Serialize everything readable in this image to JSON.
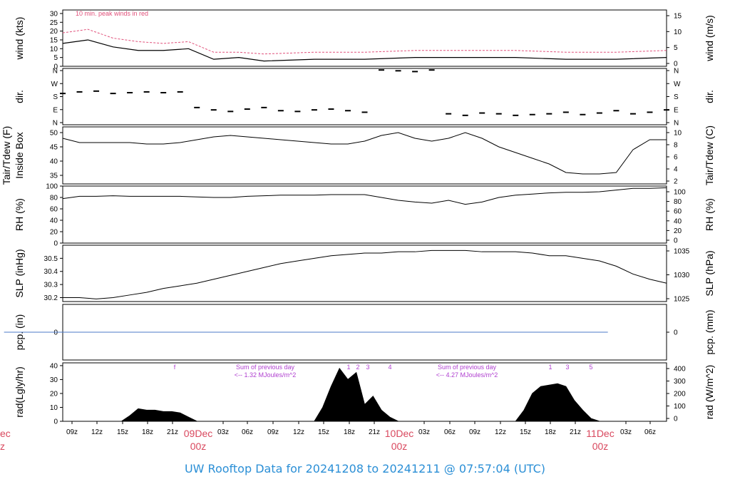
{
  "footer": {
    "prefix": "UW Rooftop Data for",
    "start": "20241208",
    "to": "to",
    "end": "20241211",
    "at": "@ 07:57:04",
    "tz": "(UTC)"
  },
  "colors": {
    "series": "#000000",
    "gust": "#e0507a",
    "precip_line": "#4b78c8",
    "annotation": "#b040d0",
    "date_label": "#d9485e",
    "footer": "#2b8fd6",
    "frame": "#000000"
  },
  "chart_data": [
    {
      "type": "line",
      "id": "wind",
      "ylabel": "wind (kts)",
      "ylabel_right": "wind (m/s)",
      "ylim": [
        0,
        32
      ],
      "yticks": [
        "0",
        "5",
        "10",
        "15",
        "20",
        "25",
        "30"
      ],
      "yticks_right": [
        "0",
        "5",
        "10",
        "15"
      ],
      "annotation": "10 min. peak winds in red",
      "x": [
        0,
        3,
        6,
        9,
        12,
        15,
        18,
        21,
        24,
        30,
        36,
        42,
        48,
        54,
        60,
        66,
        72
      ],
      "series": [
        {
          "values": [
            13,
            15,
            11,
            9,
            9,
            10,
            4,
            5,
            3,
            4,
            4,
            5,
            5,
            5,
            4,
            4,
            5
          ]
        },
        {
          "values": [
            19,
            21,
            16,
            14,
            13,
            14,
            8,
            8,
            7,
            8,
            8,
            9,
            9,
            9,
            8,
            8,
            9
          ]
        }
      ]
    },
    {
      "type": "scatter",
      "id": "dir",
      "ylabel": "dir.",
      "ylabel_right": "dir.",
      "yticks": [
        "N",
        "E",
        "S",
        "W",
        "N"
      ],
      "ylim": [
        0,
        360
      ],
      "x": [
        0,
        2,
        4,
        6,
        8,
        10,
        12,
        14,
        16,
        18,
        20,
        22,
        24,
        26,
        28,
        30,
        32,
        34,
        36,
        38,
        40,
        42,
        44,
        46,
        48,
        50,
        52,
        54,
        56,
        58,
        60,
        62,
        64,
        66,
        68,
        70,
        72
      ],
      "values": [
        200,
        210,
        215,
        200,
        205,
        210,
        205,
        210,
        110,
        95,
        85,
        100,
        110,
        90,
        85,
        95,
        100,
        90,
        80,
        350,
        345,
        340,
        350,
        70,
        60,
        75,
        70,
        60,
        65,
        70,
        80,
        65,
        75,
        90,
        70,
        80,
        95
      ]
    },
    {
      "type": "line",
      "id": "temp",
      "ylabel": "Tair/Tdew (F)",
      "ylabel2": "Inside Box",
      "ylabel_right": "Tair/Tdew (C)",
      "ylim": [
        32,
        52
      ],
      "yticks": [
        "35",
        "40",
        "45",
        "50"
      ],
      "yticks_right": [
        "2",
        "4",
        "6",
        "8",
        "10"
      ],
      "x": [
        0,
        2,
        4,
        6,
        8,
        10,
        12,
        14,
        16,
        18,
        20,
        22,
        24,
        26,
        28,
        30,
        32,
        34,
        36,
        38,
        40,
        42,
        44,
        46,
        48,
        50,
        52,
        54,
        56,
        58,
        60,
        62,
        64,
        66,
        68,
        70,
        72
      ],
      "values": [
        48,
        46.5,
        46.5,
        46.5,
        46.5,
        46,
        46,
        46.5,
        47.5,
        48.5,
        49,
        48.5,
        48,
        47.5,
        47,
        46.5,
        46,
        46,
        47,
        49,
        50,
        48,
        47,
        48,
        50,
        48,
        45,
        43,
        41,
        39,
        36,
        35.5,
        35.5,
        36,
        44,
        47.5,
        47.5
      ]
    },
    {
      "type": "line",
      "id": "rh",
      "ylabel": "RH (%)",
      "ylabel_right": "RH (%)",
      "ylim": [
        0,
        100
      ],
      "yticks": [
        "0",
        "20",
        "40",
        "60",
        "80",
        "100"
      ],
      "yticks_right": [
        "0",
        "20",
        "40",
        "60",
        "80",
        "100"
      ],
      "x": [
        0,
        2,
        4,
        6,
        8,
        10,
        12,
        14,
        16,
        18,
        20,
        22,
        24,
        26,
        28,
        30,
        32,
        34,
        36,
        38,
        40,
        42,
        44,
        46,
        48,
        50,
        52,
        54,
        56,
        58,
        60,
        62,
        64,
        66,
        68,
        70,
        72
      ],
      "values": [
        78,
        82,
        82,
        83,
        82,
        82,
        82,
        82,
        81,
        80,
        80,
        82,
        83,
        84,
        84,
        84,
        85,
        85,
        85,
        80,
        75,
        72,
        70,
        75,
        68,
        72,
        80,
        84,
        86,
        88,
        89,
        89,
        90,
        93,
        96,
        96,
        97
      ]
    },
    {
      "type": "line",
      "id": "slp",
      "ylabel": "SLP (inHg)",
      "ylabel_right": "SLP (hPa)",
      "ylim": [
        30.17,
        30.6
      ],
      "yticks": [
        "30.2",
        "30.3",
        "30.4",
        "30.5"
      ],
      "yticks_right": [
        "1025",
        "1030",
        "1035"
      ],
      "x": [
        0,
        2,
        4,
        6,
        8,
        10,
        12,
        14,
        16,
        18,
        20,
        22,
        24,
        26,
        28,
        30,
        32,
        34,
        36,
        38,
        40,
        42,
        44,
        46,
        48,
        50,
        52,
        54,
        56,
        58,
        60,
        62,
        64,
        66,
        68,
        70,
        72
      ],
      "values": [
        30.2,
        30.2,
        30.19,
        30.2,
        30.22,
        30.24,
        30.27,
        30.29,
        30.31,
        30.34,
        30.37,
        30.4,
        30.43,
        30.46,
        30.48,
        30.5,
        30.52,
        30.53,
        30.54,
        30.54,
        30.55,
        30.55,
        30.56,
        30.56,
        30.56,
        30.55,
        30.55,
        30.55,
        30.54,
        30.52,
        30.52,
        30.5,
        30.48,
        30.44,
        30.38,
        30.34,
        30.31
      ]
    },
    {
      "type": "line",
      "id": "pcp",
      "ylabel": "pcp. (in)",
      "ylabel_right": "pcp. (mm)",
      "ylim": [
        -1,
        1
      ],
      "yticks": [
        "0"
      ],
      "yticks_right": [
        "0"
      ],
      "x": [
        0,
        72
      ],
      "values": [
        0,
        0
      ]
    },
    {
      "type": "area",
      "id": "rad",
      "ylabel": "rad(Lgly/hr)",
      "ylabel_right": "rad (W/m^2)",
      "ylim": [
        0,
        42
      ],
      "yticks": [
        "0",
        "10",
        "20",
        "30",
        "40"
      ],
      "yticks_right": [
        "0",
        "100",
        "200",
        "300",
        "400"
      ],
      "x": [
        7,
        8,
        9,
        10,
        11,
        12,
        13,
        14,
        15,
        16,
        30,
        31,
        32,
        33,
        34,
        35,
        36,
        37,
        38,
        39,
        40,
        54,
        55,
        56,
        57,
        58,
        59,
        60,
        61,
        62,
        63,
        64
      ],
      "values": [
        0,
        4,
        9,
        8,
        8,
        7,
        7,
        6,
        3,
        0,
        0,
        10,
        25,
        38,
        30,
        35,
        12,
        18,
        8,
        3,
        0,
        0,
        8,
        20,
        25,
        26,
        27,
        25,
        15,
        8,
        2,
        0
      ],
      "annotations": [
        {
          "text1": "Sum of previous day",
          "text2": "<-- 1.32 MJoules/m^2"
        },
        {
          "text1": "Sum of previous day",
          "text2": "<-- 4.27 MJoules/m^2"
        }
      ],
      "markers": [
        "f",
        "1",
        "2",
        "3",
        "4",
        "1",
        "3",
        "5"
      ]
    }
  ],
  "x_axis": {
    "ticks": [
      "09z",
      "12z",
      "15z",
      "18z",
      "21z",
      "03z",
      "06z",
      "09z",
      "12z",
      "15z",
      "18z",
      "21z",
      "03z",
      "06z",
      "09z",
      "12z",
      "15z",
      "18z",
      "21z",
      "03z",
      "06z"
    ],
    "days": [
      {
        "date": "09Dec",
        "hour": "00z"
      },
      {
        "date": "10Dec",
        "hour": "00z"
      },
      {
        "date": "11Dec",
        "hour": "00z"
      }
    ],
    "clipped_left": {
      "date": "ec",
      "hour": "z"
    }
  }
}
